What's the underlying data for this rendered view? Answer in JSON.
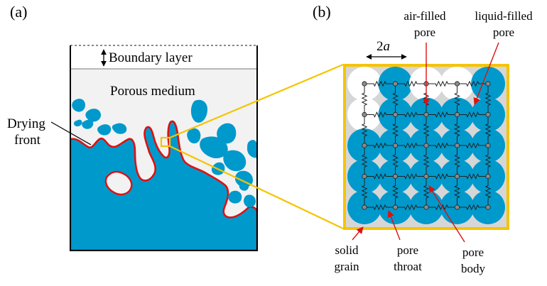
{
  "panel_a": {
    "tag": "(a)",
    "boundary_layer": "Boundary layer",
    "porous_medium": "Porous medium",
    "drying_front_line1": "Drying",
    "drying_front_line2": "front"
  },
  "panel_b": {
    "tag": "(b)",
    "pore_spacing_symbol": "2",
    "pore_spacing_var": "a",
    "air_filled_line1": "air-filled",
    "air_filled_line2": "pore",
    "liquid_filled_line1": "liquid-filled",
    "liquid_filled_line2": "pore",
    "solid_grain_line1": "solid",
    "solid_grain_line2": "grain",
    "pore_throat_line1": "pore",
    "pore_throat_line2": "throat",
    "pore_body_line1": "pore",
    "pore_body_line2": "body"
  },
  "colors": {
    "liquid": "#0099cc",
    "porous_bg": "#f2f2f2",
    "grain": "#d6d6d6",
    "front": "#dd1111",
    "zoom": "#f5c400",
    "arrow": "#dd1111"
  }
}
